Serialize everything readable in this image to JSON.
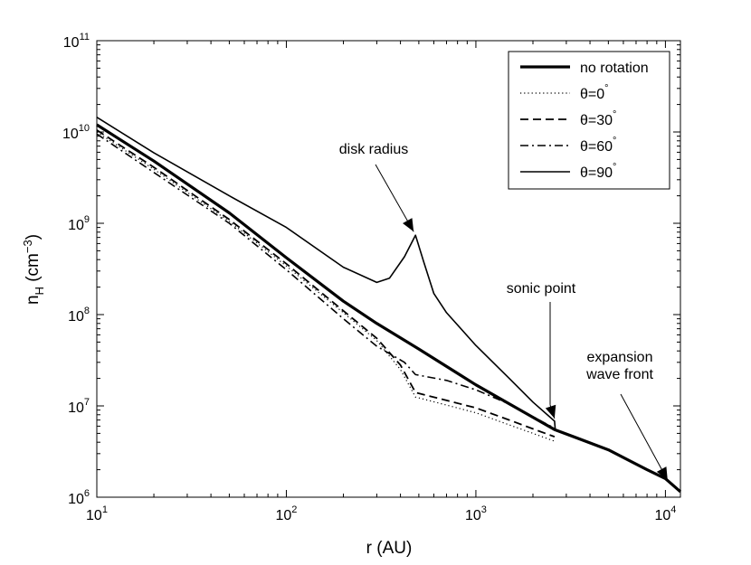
{
  "chart_data": {
    "type": "line",
    "title": "",
    "xlabel": "r (AU)",
    "ylabel_main": "n",
    "ylabel_sub": "H",
    "ylabel_unit_pre": " (cm",
    "ylabel_unit_exp": "−3",
    "ylabel_unit_post": ")",
    "xscale": "log",
    "yscale": "log",
    "xlim": [
      10,
      12000
    ],
    "ylim": [
      1000000,
      100000000000
    ],
    "x_ticks": [
      {
        "value": 10,
        "base": "10",
        "exp": "1"
      },
      {
        "value": 100,
        "base": "10",
        "exp": "2"
      },
      {
        "value": 1000,
        "base": "10",
        "exp": "3"
      },
      {
        "value": 10000,
        "base": "10",
        "exp": "4"
      }
    ],
    "y_ticks": [
      {
        "value": 1000000,
        "base": "10",
        "exp": "6"
      },
      {
        "value": 10000000,
        "base": "10",
        "exp": "7"
      },
      {
        "value": 100000000,
        "base": "10",
        "exp": "8"
      },
      {
        "value": 1000000000,
        "base": "10",
        "exp": "9"
      },
      {
        "value": 10000000000,
        "base": "10",
        "exp": "10"
      },
      {
        "value": 100000000000,
        "base": "10",
        "exp": "11"
      }
    ],
    "grid": false,
    "legend_position": "top-right",
    "series": [
      {
        "name": "no rotation",
        "style": "thick-solid",
        "points": [
          [
            10,
            12000000000
          ],
          [
            20,
            4800000000
          ],
          [
            50,
            1300000000
          ],
          [
            100,
            420000000
          ],
          [
            200,
            140000000
          ],
          [
            300,
            80000000
          ],
          [
            500,
            42000000
          ],
          [
            1000,
            17000000
          ],
          [
            2000,
            7500000
          ],
          [
            2600,
            5500000
          ],
          [
            5000,
            3300000
          ],
          [
            8000,
            2000000
          ],
          [
            10000,
            1600000
          ],
          [
            12000,
            1150000
          ]
        ]
      },
      {
        "name": "θ=0°",
        "legend_name": "θ=0",
        "style": "dotted",
        "points": [
          [
            10,
            10000000000
          ],
          [
            20,
            3900000000
          ],
          [
            50,
            1050000000
          ],
          [
            100,
            340000000
          ],
          [
            200,
            105000000
          ],
          [
            300,
            52000000
          ],
          [
            400,
            25000000
          ],
          [
            480,
            12500000
          ],
          [
            700,
            10200000
          ],
          [
            1000,
            8400000
          ],
          [
            1500,
            6200000
          ],
          [
            2000,
            5000000
          ],
          [
            2600,
            4100000
          ]
        ]
      },
      {
        "name": "θ=30°",
        "legend_name": "θ=30",
        "style": "dashed",
        "points": [
          [
            10,
            10500000000
          ],
          [
            20,
            4100000000
          ],
          [
            50,
            1100000000
          ],
          [
            100,
            360000000
          ],
          [
            200,
            110000000
          ],
          [
            300,
            55000000
          ],
          [
            400,
            28000000
          ],
          [
            480,
            14000000
          ],
          [
            700,
            11500000
          ],
          [
            1000,
            9500000
          ],
          [
            1500,
            7000000
          ],
          [
            2000,
            5600000
          ],
          [
            2600,
            4600000
          ]
        ]
      },
      {
        "name": "θ=60°",
        "legend_name": "θ=60",
        "style": "dashdot",
        "points": [
          [
            10,
            9500000000
          ],
          [
            20,
            3600000000
          ],
          [
            50,
            1000000000
          ],
          [
            100,
            310000000
          ],
          [
            200,
            90000000
          ],
          [
            300,
            45000000
          ],
          [
            420,
            30000000
          ],
          [
            480,
            22000000
          ],
          [
            700,
            19000000
          ],
          [
            1000,
            15000000
          ],
          [
            1500,
            10500000
          ],
          [
            2000,
            7600000
          ],
          [
            2600,
            5700000
          ]
        ]
      },
      {
        "name": "θ=90°",
        "legend_name": "θ=90",
        "style": "thin-solid",
        "points": [
          [
            10,
            14500000000
          ],
          [
            20,
            5900000000
          ],
          [
            50,
            2000000000
          ],
          [
            100,
            900000000
          ],
          [
            200,
            330000000
          ],
          [
            300,
            225000000
          ],
          [
            350,
            250000000
          ],
          [
            420,
            430000000
          ],
          [
            480,
            740000000
          ],
          [
            530,
            380000000
          ],
          [
            600,
            170000000
          ],
          [
            700,
            105000000
          ],
          [
            1000,
            46000000
          ],
          [
            1500,
            20000000
          ],
          [
            2000,
            11000000
          ],
          [
            2600,
            6800000
          ],
          [
            2620,
            5600000
          ]
        ]
      }
    ],
    "annotations": [
      {
        "text": "disk radius",
        "arrow_to": [
          480,
          740000000
        ]
      },
      {
        "text": "sonic point",
        "arrow_to": [
          2600,
          6800000
        ]
      },
      {
        "text": "expansion",
        "text2": "wave front",
        "arrow_to": [
          10500,
          1400000
        ]
      }
    ]
  }
}
